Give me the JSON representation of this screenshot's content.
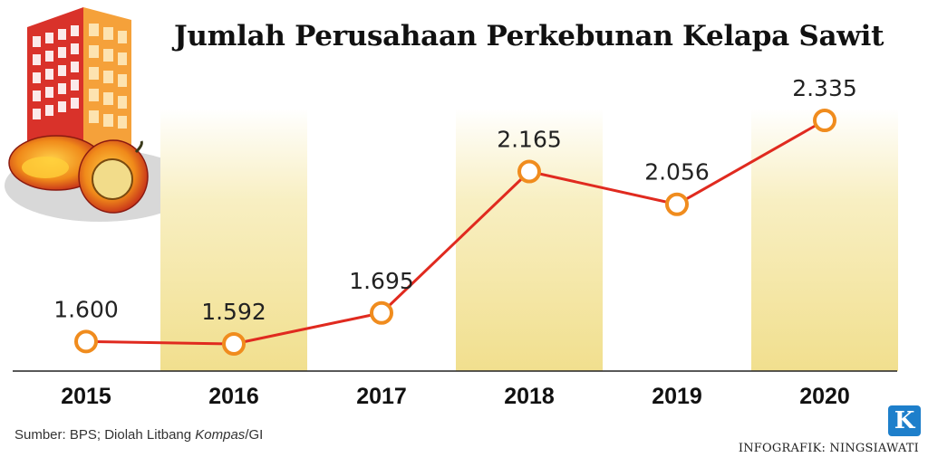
{
  "title": "Jumlah Perusahaan Perkebunan Kelapa Sawit",
  "source": {
    "prefix": "Sumber: BPS; Diolah Litbang ",
    "italic": "Kompas",
    "suffix": "/GI"
  },
  "credit": "INFOGRAFIK: NINGSIAWATI",
  "logo_letter": "K",
  "colors": {
    "line": "#e02a1f",
    "marker_stroke": "#f08c1e",
    "marker_fill": "#ffffff",
    "band": "#f3e6a0",
    "axis": "#222222"
  },
  "chart_data": {
    "type": "line",
    "categories": [
      "2015",
      "2016",
      "2017",
      "2018",
      "2019",
      "2020"
    ],
    "values": [
      1600,
      1592,
      1695,
      2165,
      2056,
      2335
    ],
    "data_labels": [
      "1.600",
      "1.592",
      "1.695",
      "2.165",
      "2.056",
      "2.335"
    ],
    "highlighted_bands": [
      "2016",
      "2018",
      "2020"
    ],
    "title": "Jumlah Perusahaan Perkebunan Kelapa Sawit",
    "xlabel": "",
    "ylabel": "",
    "y_axis_visible": false,
    "grid": false
  }
}
